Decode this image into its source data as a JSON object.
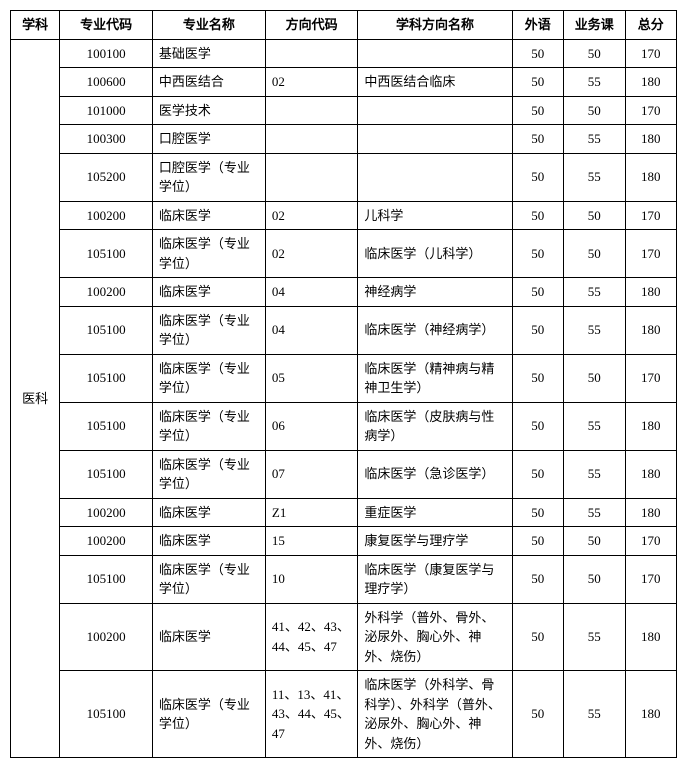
{
  "columns": [
    "学科",
    "专业代码",
    "专业名称",
    "方向代码",
    "学科方向名称",
    "外语",
    "业务课",
    "总分"
  ],
  "subject": "医科",
  "rows": [
    {
      "code": "100100",
      "major": "基础医学",
      "dir_code": "",
      "dir_name": "",
      "lang": 50,
      "course": 50,
      "total": 170
    },
    {
      "code": "100600",
      "major": "中西医结合",
      "dir_code": "02",
      "dir_name": "中西医结合临床",
      "lang": 50,
      "course": 55,
      "total": 180
    },
    {
      "code": "101000",
      "major": "医学技术",
      "dir_code": "",
      "dir_name": "",
      "lang": 50,
      "course": 50,
      "total": 170
    },
    {
      "code": "100300",
      "major": "口腔医学",
      "dir_code": "",
      "dir_name": "",
      "lang": 50,
      "course": 55,
      "total": 180
    },
    {
      "code": "105200",
      "major": "口腔医学（专业学位）",
      "dir_code": "",
      "dir_name": "",
      "lang": 50,
      "course": 55,
      "total": 180
    },
    {
      "code": "100200",
      "major": "临床医学",
      "dir_code": "02",
      "dir_name": "儿科学",
      "lang": 50,
      "course": 50,
      "total": 170
    },
    {
      "code": "105100",
      "major": "临床医学（专业学位）",
      "dir_code": "02",
      "dir_name": "临床医学（儿科学）",
      "lang": 50,
      "course": 50,
      "total": 170
    },
    {
      "code": "100200",
      "major": "临床医学",
      "dir_code": "04",
      "dir_name": "神经病学",
      "lang": 50,
      "course": 55,
      "total": 180
    },
    {
      "code": "105100",
      "major": "临床医学（专业学位）",
      "dir_code": "04",
      "dir_name": "临床医学（神经病学）",
      "lang": 50,
      "course": 55,
      "total": 180
    },
    {
      "code": "105100",
      "major": "临床医学（专业学位）",
      "dir_code": "05",
      "dir_name": "临床医学（精神病与精神卫生学）",
      "lang": 50,
      "course": 50,
      "total": 170
    },
    {
      "code": "105100",
      "major": "临床医学（专业学位）",
      "dir_code": "06",
      "dir_name": "临床医学（皮肤病与性病学）",
      "lang": 50,
      "course": 55,
      "total": 180
    },
    {
      "code": "105100",
      "major": "临床医学（专业学位）",
      "dir_code": "07",
      "dir_name": "临床医学（急诊医学）",
      "lang": 50,
      "course": 55,
      "total": 180
    },
    {
      "code": "100200",
      "major": "临床医学",
      "dir_code": "Z1",
      "dir_name": "重症医学",
      "lang": 50,
      "course": 55,
      "total": 180
    },
    {
      "code": "100200",
      "major": "临床医学",
      "dir_code": "15",
      "dir_name": "康复医学与理疗学",
      "lang": 50,
      "course": 50,
      "total": 170
    },
    {
      "code": "105100",
      "major": "临床医学（专业学位）",
      "dir_code": "10",
      "dir_name": "临床医学（康复医学与理疗学）",
      "lang": 50,
      "course": 50,
      "total": 170
    },
    {
      "code": "100200",
      "major": "临床医学",
      "dir_code": "41、42、43、44、45、47",
      "dir_name": "外科学（普外、骨外、泌尿外、胸心外、神外、烧伤）",
      "lang": 50,
      "course": 55,
      "total": 180
    },
    {
      "code": "105100",
      "major": "临床医学（专业学位）",
      "dir_code": "11、13、41、43、44、45、47",
      "dir_name": "临床医学（外科学、骨科学）、外科学（普外、泌尿外、胸心外、神外、烧伤）",
      "lang": 50,
      "course": 55,
      "total": 180
    }
  ]
}
